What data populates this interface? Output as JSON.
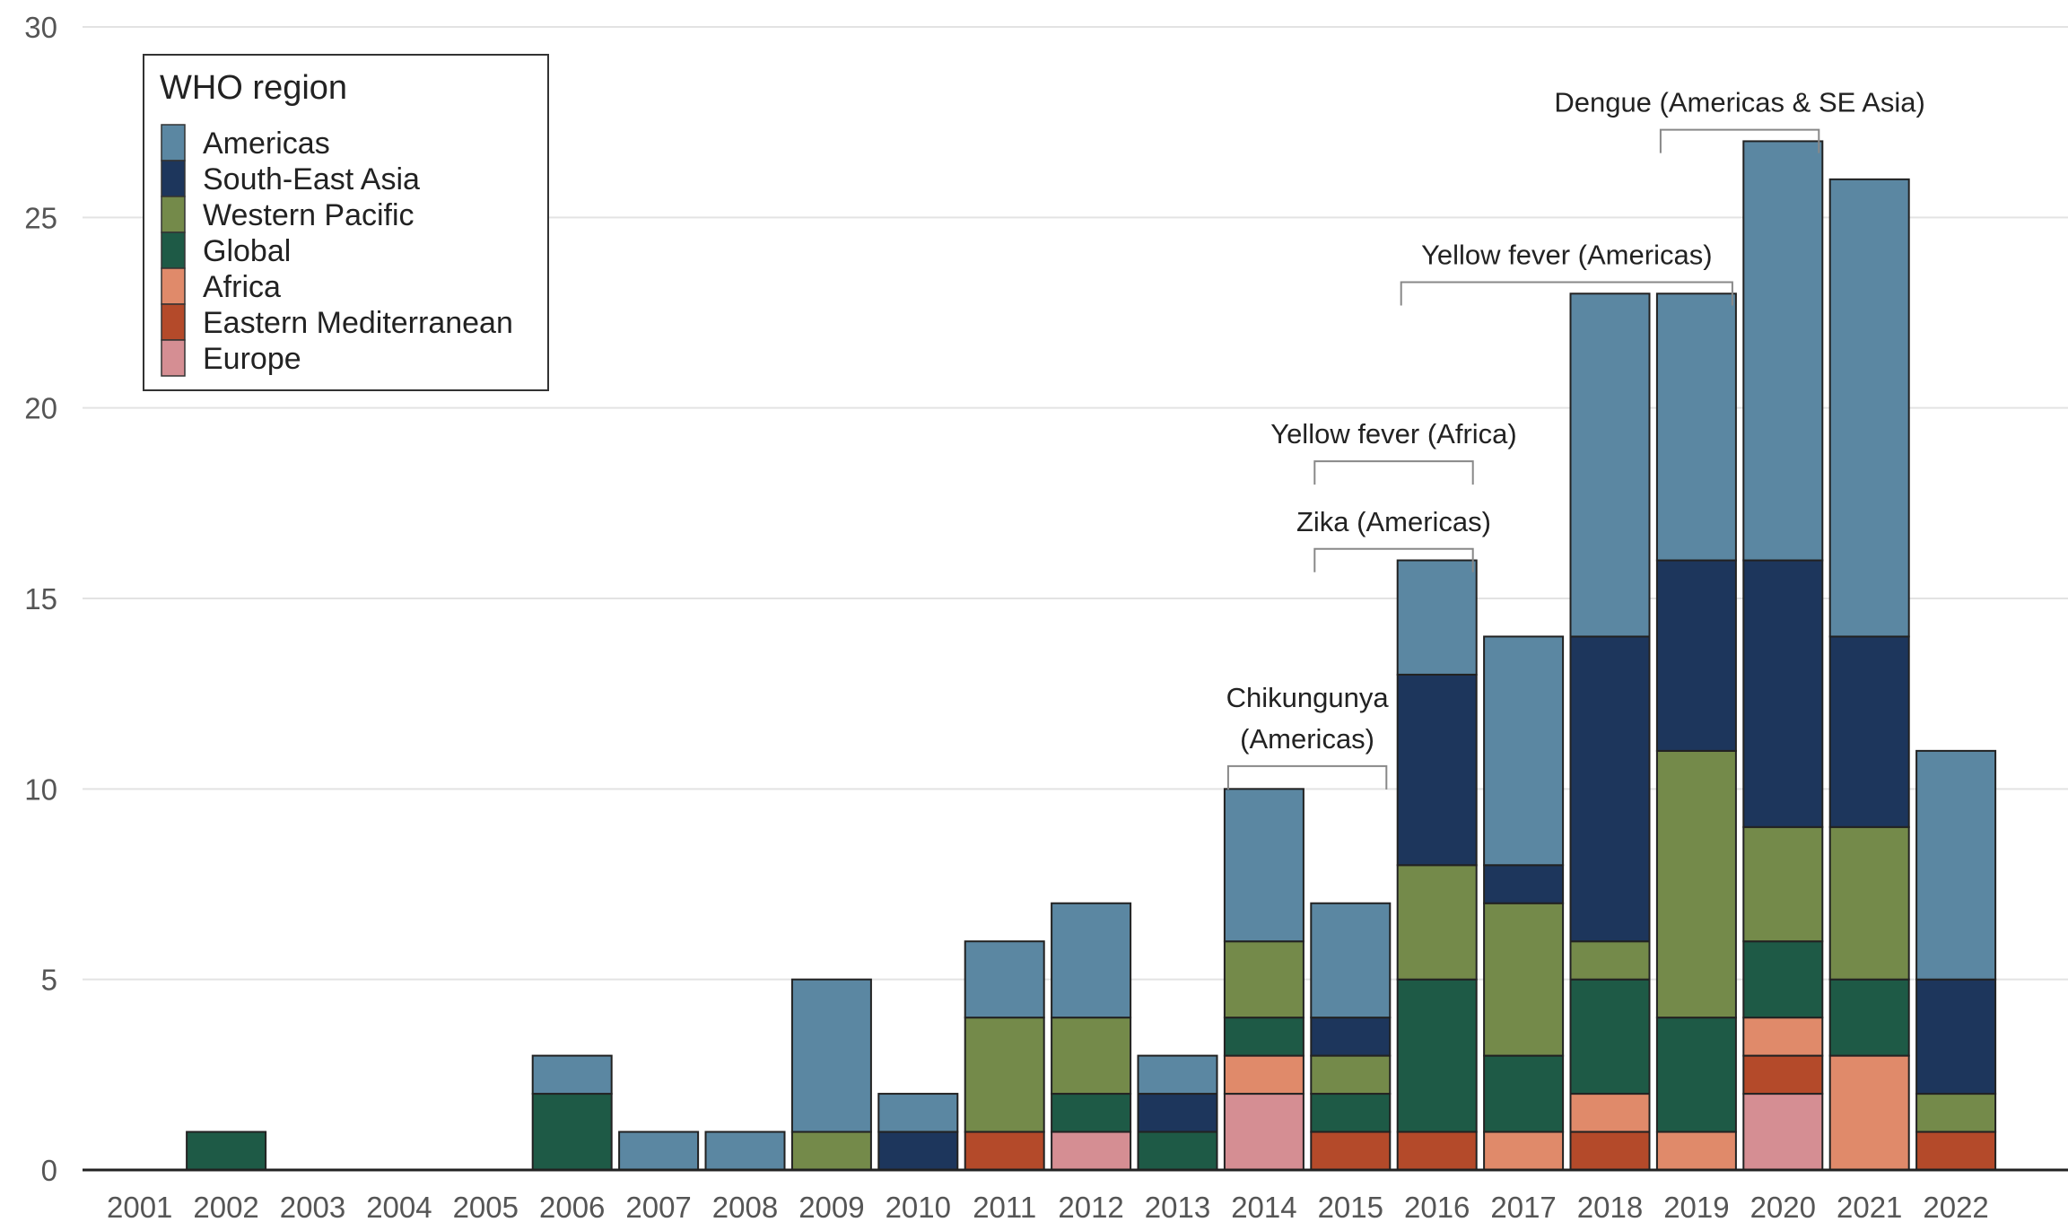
{
  "chart_data": {
    "type": "bar",
    "stacked": true,
    "title": "",
    "xlabel": "",
    "ylabel": "",
    "ylim": [
      0,
      30
    ],
    "yticks": [
      "0",
      "5",
      "10",
      "15",
      "20",
      "25",
      "30"
    ],
    "grid": true,
    "categories": [
      "2001",
      "2002",
      "2003",
      "2004",
      "2005",
      "2006",
      "2007",
      "2008",
      "2009",
      "2010",
      "2011",
      "2012",
      "2013",
      "2014",
      "2015",
      "2016",
      "2017",
      "2018",
      "2019",
      "2020",
      "2021",
      "2022"
    ],
    "legend": {
      "title": "WHO region",
      "placement": "top-left"
    },
    "series": [
      {
        "name": "Europe",
        "color": "#d58e93",
        "values": [
          0,
          0,
          0,
          0,
          0,
          0,
          0,
          0,
          0,
          0,
          0,
          1,
          0,
          2,
          0,
          0,
          0,
          0,
          0,
          2,
          0,
          0
        ]
      },
      {
        "name": "Eastern Mediterranean",
        "color": "#b44a2a",
        "values": [
          0,
          0,
          0,
          0,
          0,
          0,
          0,
          0,
          0,
          0,
          1,
          0,
          0,
          0,
          1,
          1,
          0,
          1,
          0,
          1,
          0,
          1
        ]
      },
      {
        "name": "Africa",
        "color": "#e08a6a",
        "values": [
          0,
          0,
          0,
          0,
          0,
          0,
          0,
          0,
          0,
          0,
          0,
          0,
          0,
          1,
          0,
          0,
          1,
          1,
          1,
          1,
          3,
          0
        ]
      },
      {
        "name": "Global",
        "color": "#1e5a46",
        "values": [
          0,
          1,
          0,
          0,
          0,
          2,
          0,
          0,
          0,
          0,
          0,
          1,
          1,
          1,
          1,
          4,
          2,
          3,
          3,
          2,
          2,
          0
        ]
      },
      {
        "name": "Western Pacific",
        "color": "#748a4a",
        "values": [
          0,
          0,
          0,
          0,
          0,
          0,
          0,
          0,
          1,
          0,
          3,
          2,
          0,
          2,
          1,
          3,
          4,
          1,
          7,
          3,
          4,
          1
        ]
      },
      {
        "name": "South-East Asia",
        "color": "#1d365c",
        "values": [
          0,
          0,
          0,
          0,
          0,
          0,
          0,
          0,
          0,
          1,
          0,
          0,
          1,
          0,
          1,
          5,
          1,
          8,
          5,
          7,
          5,
          3
        ]
      },
      {
        "name": "Americas",
        "color": "#5b87a2",
        "values": [
          0,
          0,
          0,
          0,
          0,
          1,
          1,
          1,
          4,
          1,
          2,
          3,
          1,
          4,
          3,
          3,
          6,
          9,
          7,
          11,
          12,
          6
        ]
      }
    ],
    "legend_order": [
      "Americas",
      "South-East Asia",
      "Western Pacific",
      "Global",
      "Africa",
      "Eastern Mediterranean",
      "Europe"
    ],
    "annotations": [
      {
        "lines": [
          "Dengue (Americas & SE Asia)"
        ],
        "from": "2019",
        "to": "2020",
        "at_value": 27.3
      },
      {
        "lines": [
          "Yellow fever (Americas)"
        ],
        "from": "2016",
        "to": "2019",
        "at_value": 23.3
      },
      {
        "lines": [
          "Yellow fever (Africa)"
        ],
        "from": "2015",
        "to": "2016",
        "at_value": 18.6
      },
      {
        "lines": [
          "Zika (Americas)"
        ],
        "from": "2015",
        "to": "2016",
        "at_value": 16.3
      },
      {
        "lines": [
          "Chikungunya",
          "(Americas)"
        ],
        "from": "2014",
        "to": "2015",
        "at_value": 10.6
      }
    ]
  }
}
